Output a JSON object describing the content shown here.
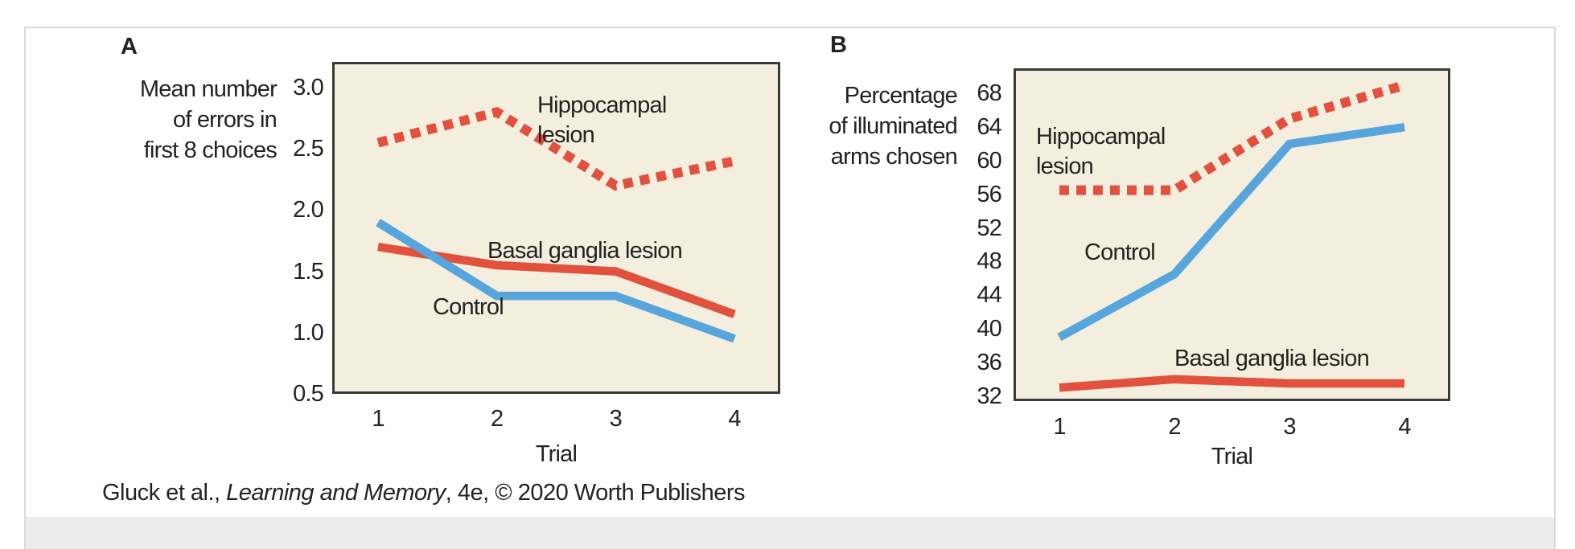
{
  "figure": {
    "panel_a_letter": "A",
    "panel_b_letter": "B",
    "caption": {
      "prefix": "Gluck et al., ",
      "title": "Learning and Memory",
      "suffix": ", 4e, © 2020 Worth Publishers"
    }
  },
  "colors": {
    "red": "#e2503e",
    "blue": "#57a5dc",
    "plot_bg": "#f3eedd",
    "plot_border": "#3a3938",
    "text": "#242321"
  },
  "chart_data": [
    {
      "type": "line",
      "panel": "A",
      "title": "",
      "xlabel": "Trial",
      "ylabel_lines": [
        "Mean number",
        "of errors in",
        "first 8 choices"
      ],
      "categories": [
        "1",
        "2",
        "3",
        "4"
      ],
      "ytick_labels": [
        "3.0",
        "2.5",
        "2.0",
        "1.5",
        "1.0",
        "0.5"
      ],
      "ytick_values": [
        3.0,
        2.5,
        2.0,
        1.5,
        1.0,
        0.5
      ],
      "ylim": [
        0.5,
        3.21
      ],
      "grid": false,
      "legend": "inline-labels",
      "series": [
        {
          "name": "Basal ganglia lesion",
          "style": "solid",
          "color_key": "red",
          "values": [
            1.7,
            1.55,
            1.5,
            1.15
          ]
        },
        {
          "name": "Control",
          "style": "solid",
          "color_key": "blue",
          "values": [
            1.9,
            1.3,
            1.3,
            0.95
          ]
        },
        {
          "name": "Hippocampal lesion",
          "style": "dashed",
          "color_key": "red",
          "values": [
            2.55,
            2.8,
            2.2,
            2.4
          ]
        }
      ]
    },
    {
      "type": "line",
      "panel": "B",
      "title": "",
      "xlabel": "Trial",
      "ylabel_lines": [
        "Percentage",
        "of illuminated",
        "arms chosen"
      ],
      "categories": [
        "1",
        "2",
        "3",
        "4"
      ],
      "ytick_labels": [
        "68",
        "64",
        "60",
        "56",
        "52",
        "48",
        "44",
        "40",
        "36",
        "32"
      ],
      "ytick_values": [
        68,
        64,
        60,
        56,
        52,
        48,
        44,
        40,
        36,
        32
      ],
      "ylim": [
        31.4,
        71.0
      ],
      "grid": false,
      "legend": "inline-labels",
      "series": [
        {
          "name": "Basal ganglia lesion",
          "style": "solid",
          "color_key": "red",
          "values": [
            33,
            34,
            33.5,
            33.5
          ]
        },
        {
          "name": "Control",
          "style": "solid",
          "color_key": "blue",
          "values": [
            39,
            46.5,
            62,
            64
          ]
        },
        {
          "name": "Hippocampal lesion",
          "style": "dashed",
          "color_key": "red",
          "values": [
            56.5,
            56.5,
            65,
            69
          ]
        }
      ]
    }
  ]
}
